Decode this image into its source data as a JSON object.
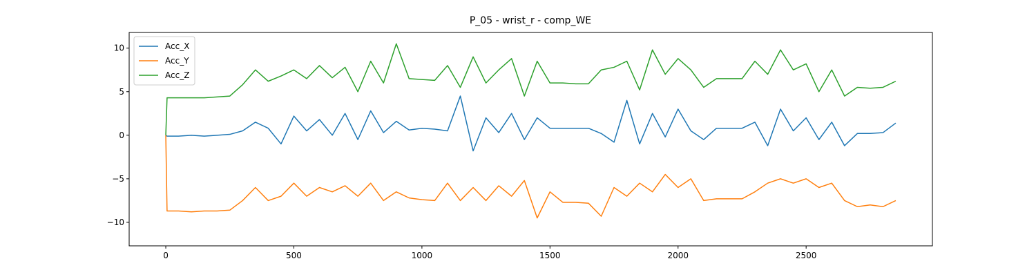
{
  "chart_data": {
    "type": "line",
    "title": "P_05 - wrist_r - comp_WE",
    "x": [
      0,
      5,
      50,
      100,
      150,
      200,
      250,
      300,
      350,
      400,
      450,
      500,
      550,
      600,
      650,
      700,
      750,
      800,
      850,
      900,
      950,
      1000,
      1050,
      1100,
      1150,
      1200,
      1250,
      1300,
      1350,
      1400,
      1450,
      1500,
      1550,
      1600,
      1650,
      1700,
      1750,
      1800,
      1850,
      1900,
      1950,
      2000,
      2050,
      2100,
      2150,
      2200,
      2250,
      2300,
      2350,
      2400,
      2450,
      2500,
      2550,
      2600,
      2650,
      2700,
      2750,
      2800,
      2850
    ],
    "series": [
      {
        "name": "Acc_X",
        "color": "#1f77b4",
        "values": [
          0,
          -0.1,
          -0.1,
          0,
          -0.1,
          0,
          0.1,
          0.5,
          1.5,
          0.8,
          -1,
          2.2,
          0.5,
          1.8,
          0,
          2.5,
          -0.5,
          2.8,
          0.3,
          1.6,
          0.6,
          0.8,
          0.7,
          0.5,
          4.5,
          -1.8,
          2.0,
          0.3,
          2.5,
          -0.5,
          2.0,
          0.8,
          0.8,
          0.8,
          0.8,
          0.2,
          -0.8,
          4.0,
          -1.0,
          2.5,
          -0.2,
          3.0,
          0.5,
          -0.5,
          0.8,
          0.8,
          0.8,
          1.5,
          -1.2,
          3.0,
          0.5,
          2.0,
          -0.5,
          1.5,
          -1.2,
          0.2,
          0.2,
          0.3,
          1.4
        ]
      },
      {
        "name": "Acc_Y",
        "color": "#ff7f0e",
        "values": [
          0,
          -8.7,
          -8.7,
          -8.8,
          -8.7,
          -8.7,
          -8.6,
          -7.5,
          -6.0,
          -7.5,
          -7.0,
          -5.5,
          -7.0,
          -6.0,
          -6.5,
          -5.8,
          -7.0,
          -5.5,
          -7.5,
          -6.5,
          -7.2,
          -7.4,
          -7.5,
          -5.5,
          -7.5,
          -6.0,
          -7.5,
          -5.8,
          -7.0,
          -5.2,
          -9.5,
          -6.5,
          -7.7,
          -7.7,
          -7.8,
          -9.3,
          -6.0,
          -7.0,
          -5.5,
          -6.5,
          -4.5,
          -6.0,
          -5.0,
          -7.5,
          -7.3,
          -7.3,
          -7.3,
          -6.5,
          -5.5,
          -5.0,
          -5.5,
          -5.0,
          -6.0,
          -5.5,
          -7.5,
          -8.2,
          -8.0,
          -8.2,
          -7.5
        ]
      },
      {
        "name": "Acc_Z",
        "color": "#2ca02c",
        "values": [
          0,
          4.3,
          4.3,
          4.3,
          4.3,
          4.4,
          4.5,
          5.8,
          7.5,
          6.2,
          6.8,
          7.5,
          6.5,
          8.0,
          6.6,
          7.8,
          5.0,
          8.5,
          6.0,
          10.5,
          6.5,
          6.4,
          6.3,
          8.0,
          5.5,
          9.0,
          6.0,
          7.5,
          8.8,
          4.5,
          8.5,
          6.0,
          6.0,
          5.9,
          5.9,
          7.5,
          7.8,
          8.5,
          5.2,
          9.8,
          7.0,
          8.8,
          7.5,
          5.5,
          6.5,
          6.5,
          6.5,
          8.5,
          7.0,
          9.8,
          7.5,
          8.2,
          5.0,
          7.5,
          4.5,
          5.5,
          5.4,
          5.5,
          6.2
        ]
      }
    ],
    "xlim": [
      -143,
      2993
    ],
    "xticks": [
      0,
      500,
      1000,
      1500,
      2000,
      2500
    ],
    "ylim": [
      -12.7,
      11.8
    ],
    "yticks": [
      {
        "value": -10,
        "label": "−10"
      },
      {
        "value": -5,
        "label": "−5"
      },
      0,
      5,
      10
    ],
    "legend": "upper left"
  }
}
